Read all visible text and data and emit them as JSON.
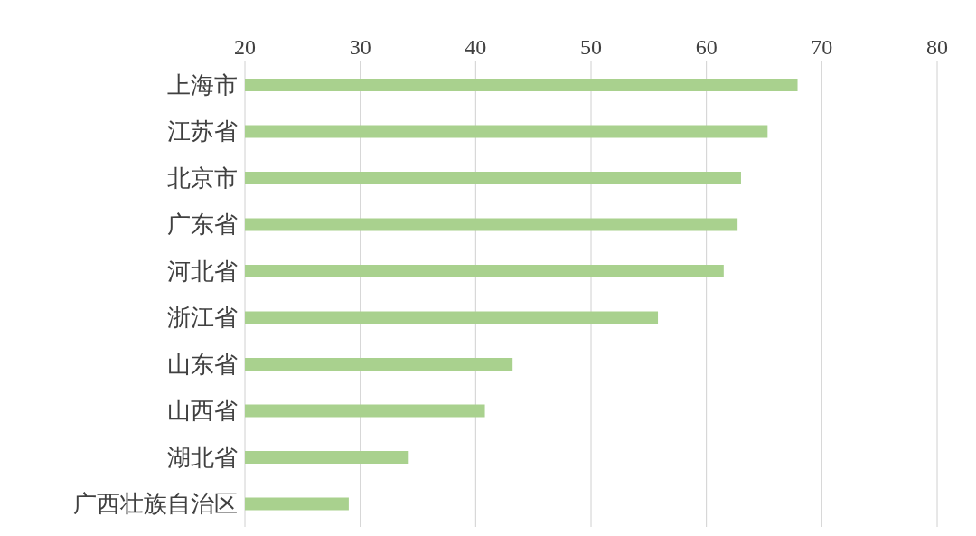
{
  "chart_data": {
    "type": "bar",
    "orientation": "horizontal",
    "categories": [
      "上海市",
      "江苏省",
      "北京市",
      "广东省",
      "河北省",
      "浙江省",
      "山东省",
      "山西省",
      "湖北省",
      "广西壮族自治区"
    ],
    "values": [
      67.9,
      65.3,
      63.0,
      62.7,
      61.5,
      55.8,
      43.2,
      40.8,
      34.2,
      29.0
    ],
    "color": "#a9d18e",
    "xlim": [
      20,
      80
    ],
    "xticks": [
      20,
      30,
      40,
      50,
      60,
      70,
      80
    ],
    "grid": "x"
  }
}
